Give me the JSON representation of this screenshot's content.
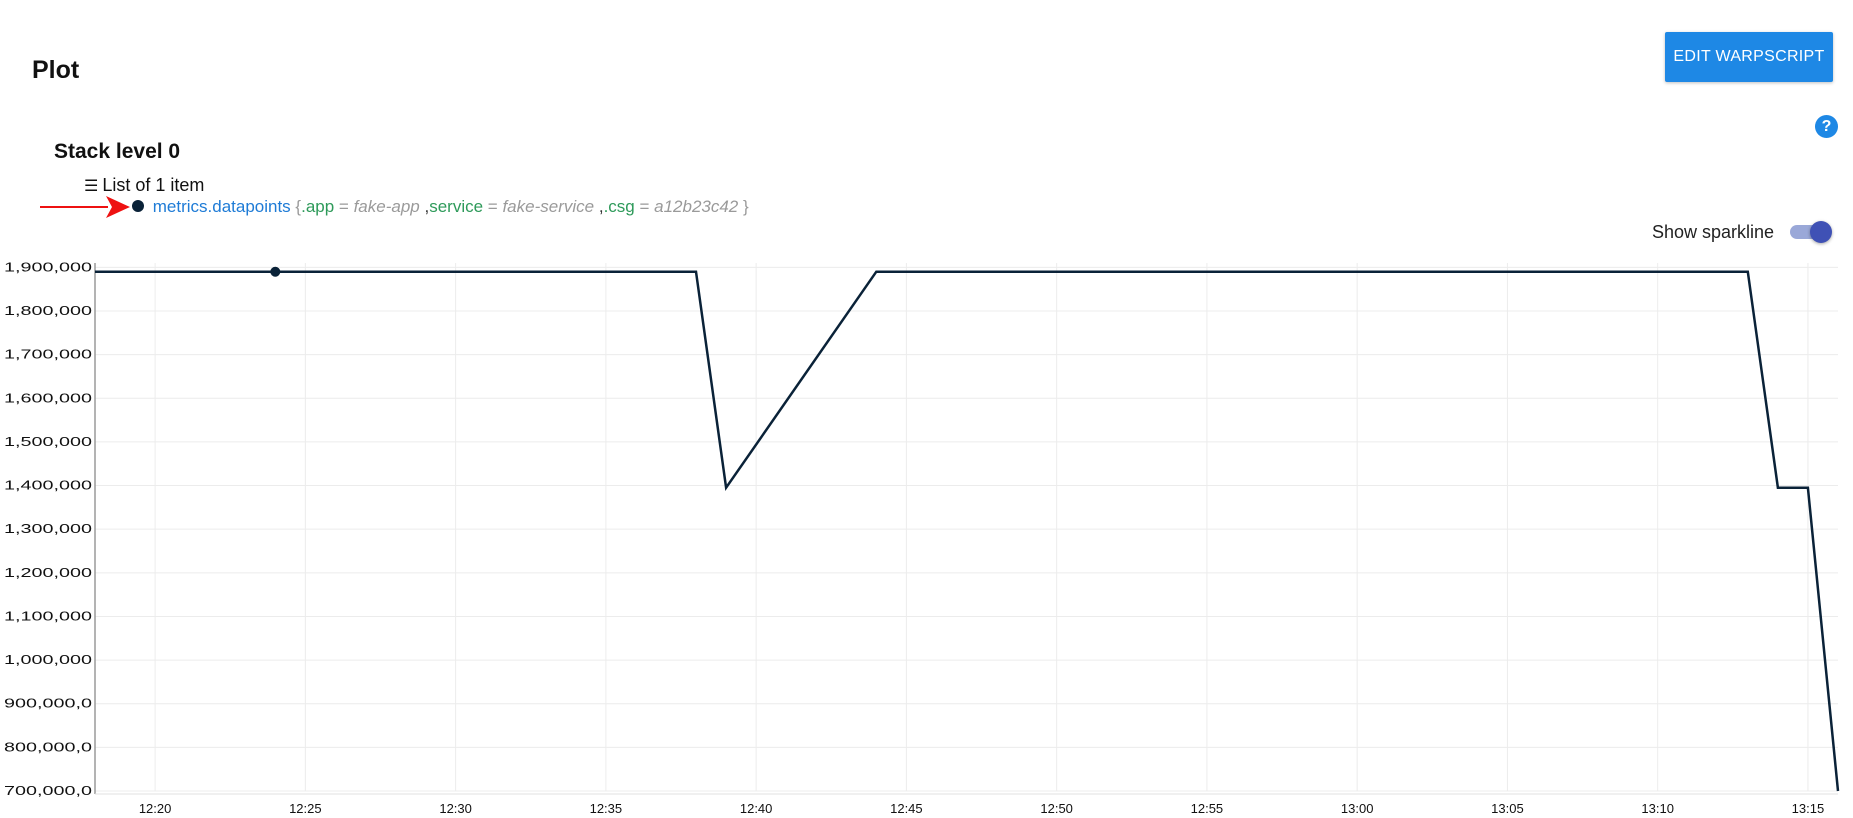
{
  "header": {
    "title": "Plot",
    "edit_button_label": "EDIT WARPSCRIPT",
    "help_label": "?"
  },
  "stack": {
    "title": "Stack level 0",
    "list_label": "List of 1 item"
  },
  "series_item": {
    "class_name": "metrics.datapoints",
    "open_brace": "{",
    "close_brace": "}",
    "labels": [
      {
        "key": ".app",
        "value": "fake-app"
      },
      {
        "key": "service",
        "value": "fake-service"
      },
      {
        "key": ".csg",
        "value": "a12b23c42"
      }
    ],
    "color": "#0a2238"
  },
  "sparkline": {
    "label": "Show sparkline",
    "enabled": true
  },
  "chart_data": {
    "type": "line",
    "x_unit": "minutes since 12:00",
    "xlim": [
      18,
      76
    ],
    "ylim": [
      700000,
      1910000
    ],
    "yticks": [
      {
        "value": 1900000,
        "label": "1,900,000"
      },
      {
        "value": 1800000,
        "label": "1,800,000"
      },
      {
        "value": 1700000,
        "label": "1,700,000"
      },
      {
        "value": 1600000,
        "label": "1,600,000"
      },
      {
        "value": 1500000,
        "label": "1,500,000"
      },
      {
        "value": 1400000,
        "label": "1,400,000"
      },
      {
        "value": 1300000,
        "label": "1,300,000"
      },
      {
        "value": 1200000,
        "label": "1,200,000"
      },
      {
        "value": 1100000,
        "label": "1,100,000"
      },
      {
        "value": 1000000,
        "label": "1,000,000"
      },
      {
        "value": 900000,
        "label": "900,000,0"
      },
      {
        "value": 800000,
        "label": "800,000,0"
      },
      {
        "value": 700000,
        "label": "700,000,0"
      }
    ],
    "xticks": [
      {
        "value": 20,
        "label": "12:20"
      },
      {
        "value": 25,
        "label": "12:25"
      },
      {
        "value": 30,
        "label": "12:30"
      },
      {
        "value": 35,
        "label": "12:35"
      },
      {
        "value": 40,
        "label": "12:40"
      },
      {
        "value": 45,
        "label": "12:45"
      },
      {
        "value": 50,
        "label": "12:50"
      },
      {
        "value": 55,
        "label": "12:55"
      },
      {
        "value": 60,
        "label": "13:00"
      },
      {
        "value": 65,
        "label": "13:05"
      },
      {
        "value": 70,
        "label": "13:10"
      },
      {
        "value": 75,
        "label": "13:15"
      }
    ],
    "series": [
      {
        "name": "metrics.datapoints",
        "color": "#0a2238",
        "points": [
          [
            18,
            1890000
          ],
          [
            24,
            1890000
          ],
          [
            38,
            1890000
          ],
          [
            39,
            1395000
          ],
          [
            44,
            1890000
          ],
          [
            73,
            1890000
          ],
          [
            74,
            1395000
          ],
          [
            75,
            1395000
          ],
          [
            76,
            700000
          ]
        ],
        "marker_at": [
          24,
          1890000
        ]
      }
    ],
    "grid": true
  }
}
